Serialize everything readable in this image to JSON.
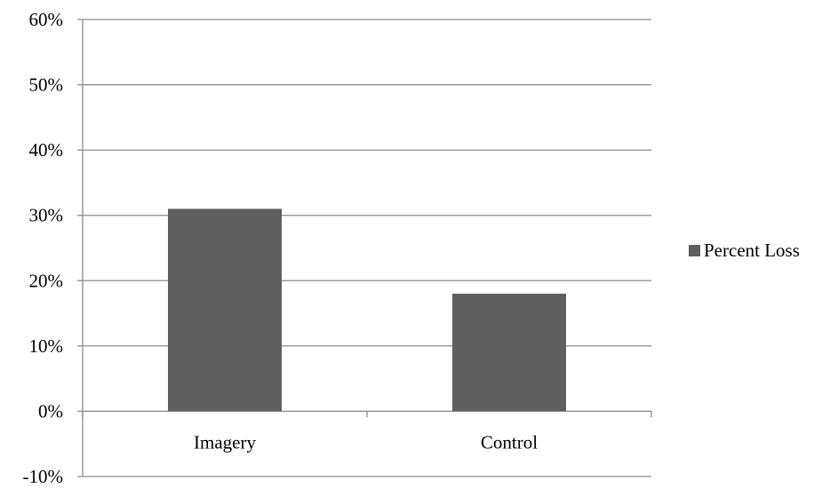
{
  "chart_data": {
    "type": "bar",
    "title": "",
    "xlabel": "",
    "ylabel": "",
    "categories": [
      "Imagery",
      "Control"
    ],
    "series": [
      {
        "name": "Percent Loss",
        "values": [
          0.31,
          0.18
        ],
        "color": "#5f5f5f"
      }
    ],
    "ylim": [
      -0.1,
      0.6
    ],
    "ytick_step": 0.1,
    "ytick_labels": [
      "-10%",
      "0%",
      "10%",
      "20%",
      "30%",
      "40%",
      "50%",
      "60%"
    ],
    "grid": true,
    "legend_position": "right"
  }
}
